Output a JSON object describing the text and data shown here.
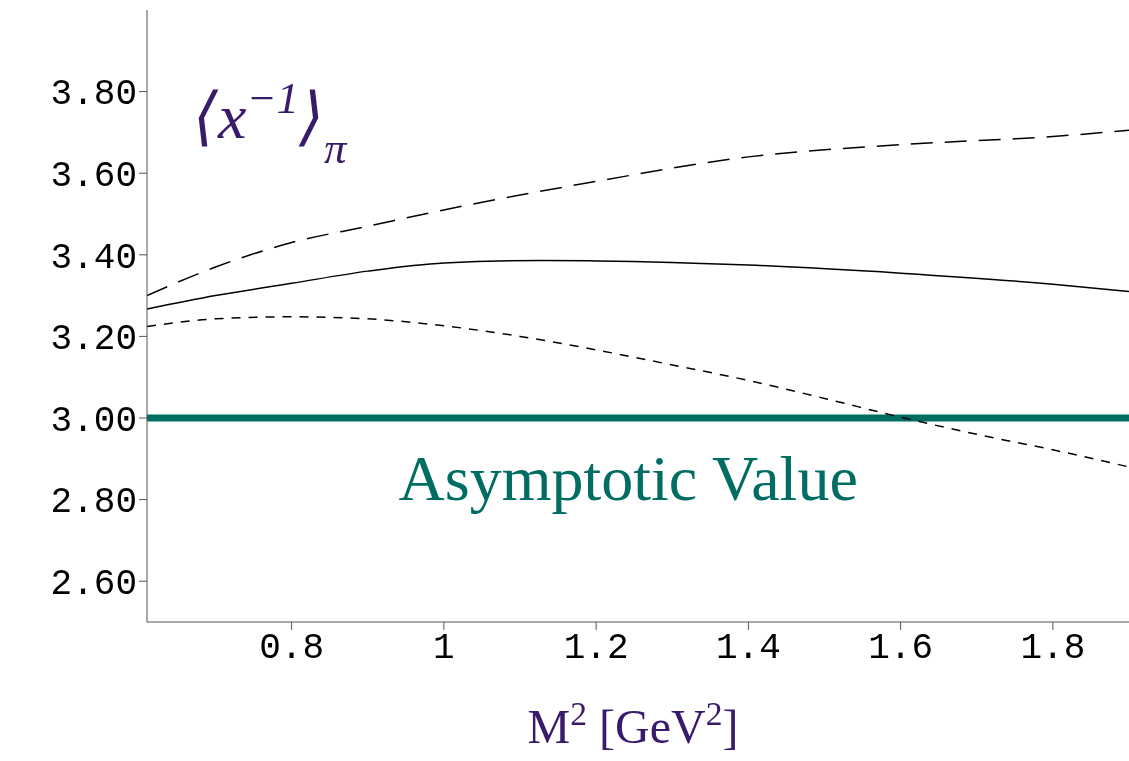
{
  "chart_data": {
    "type": "line",
    "title": "⟨x$^{−1}$⟩$_{π}$",
    "xlabel": "M$^{2}$ [GeV$^{2}$]",
    "xlim": [
      0.61,
      1.9
    ],
    "xticks": [
      0.8,
      1,
      1.2,
      1.4,
      1.6,
      1.8
    ],
    "ylim": [
      2.5,
      4.0
    ],
    "yticks": [
      {
        "value": 2.6,
        "label": "2.60"
      },
      {
        "value": 2.8,
        "label": "2.80"
      },
      {
        "value": 3.0,
        "label": "3.00"
      },
      {
        "value": 3.2,
        "label": "3.20"
      },
      {
        "value": 3.4,
        "label": "3.40"
      },
      {
        "value": 3.6,
        "label": "3.60"
      },
      {
        "value": 3.8,
        "label": "3.80"
      }
    ],
    "marker": "none",
    "series": [
      {
        "color": "#000000",
        "line_style": "dashed",
        "x": [
          0.61,
          0.7,
          0.8,
          0.9,
          1.0,
          1.2,
          1.4,
          1.6,
          1.8,
          1.9
        ],
        "values": [
          3.3,
          3.37,
          3.43,
          3.47,
          3.51,
          3.58,
          3.64,
          3.67,
          3.69,
          3.705
        ]
      },
      {
        "color": "#000000",
        "line_style": "solid",
        "x": [
          0.61,
          0.7,
          0.8,
          0.9,
          1.0,
          1.13,
          1.2,
          1.4,
          1.6,
          1.8,
          1.9
        ],
        "values": [
          3.267,
          3.3,
          3.33,
          3.36,
          3.38,
          3.386,
          3.385,
          3.375,
          3.355,
          3.328,
          3.31
        ]
      },
      {
        "color": "#000000",
        "line_style": "dotted",
        "x": [
          0.61,
          0.7,
          0.8,
          0.9,
          1.0,
          1.1,
          1.2,
          1.3,
          1.4,
          1.5,
          1.6,
          1.7,
          1.8,
          1.9
        ],
        "values": [
          3.224,
          3.243,
          3.248,
          3.243,
          3.226,
          3.2,
          3.167,
          3.13,
          3.092,
          3.048,
          3.002,
          2.96,
          2.922,
          2.88
        ]
      }
    ],
    "ref_lines": [
      {
        "axis": "y",
        "value": 3.0,
        "label": "Asymptotic Value",
        "color": "#006d62",
        "line_style": "solid"
      }
    ]
  }
}
